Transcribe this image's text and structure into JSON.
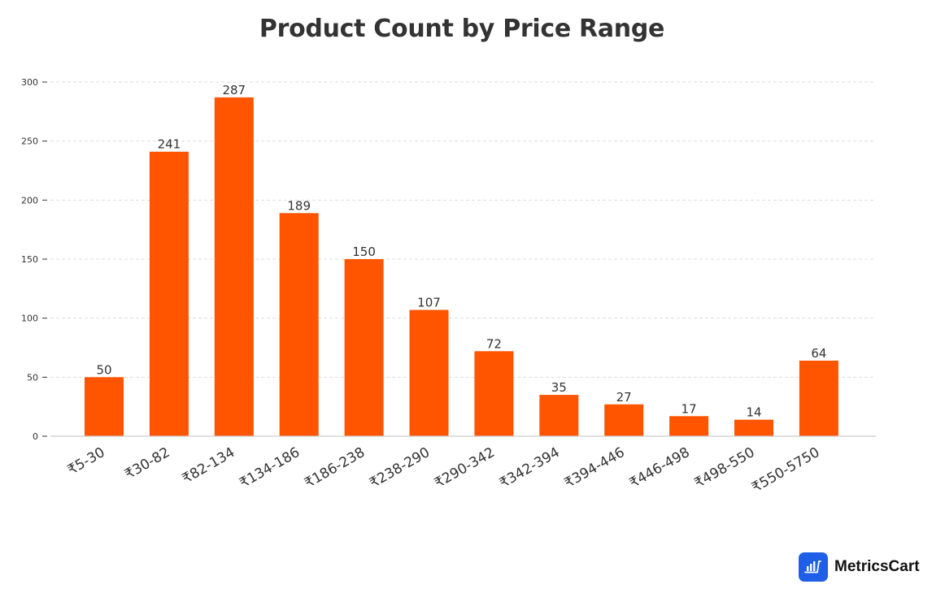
{
  "title": "Product Count by Price Range",
  "brand": {
    "name": "MetricsCart",
    "color": "#1f5fe8"
  },
  "colors": {
    "bar": "#ff5500",
    "grid": "#dddddd",
    "axis": "#cccccc",
    "text": "#333333"
  },
  "chart_data": {
    "type": "bar",
    "title": "Product Count by Price Range",
    "xlabel": "",
    "ylabel": "",
    "categories": [
      "₹5-30",
      "₹30-82",
      "₹82-134",
      "₹134-186",
      "₹186-238",
      "₹238-290",
      "₹290-342",
      "₹342-394",
      "₹394-446",
      "₹446-498",
      "₹498-550",
      "₹550-5750"
    ],
    "values": [
      50,
      241,
      287,
      189,
      150,
      107,
      72,
      35,
      27,
      17,
      14,
      64
    ],
    "ylim": [
      0,
      300
    ],
    "yticks": [
      0,
      50,
      100,
      150,
      200,
      250,
      300
    ],
    "grid": true,
    "grid_style": "dashed horizontal",
    "data_labels": true,
    "legend": null,
    "x_tick_rotation": -30
  }
}
